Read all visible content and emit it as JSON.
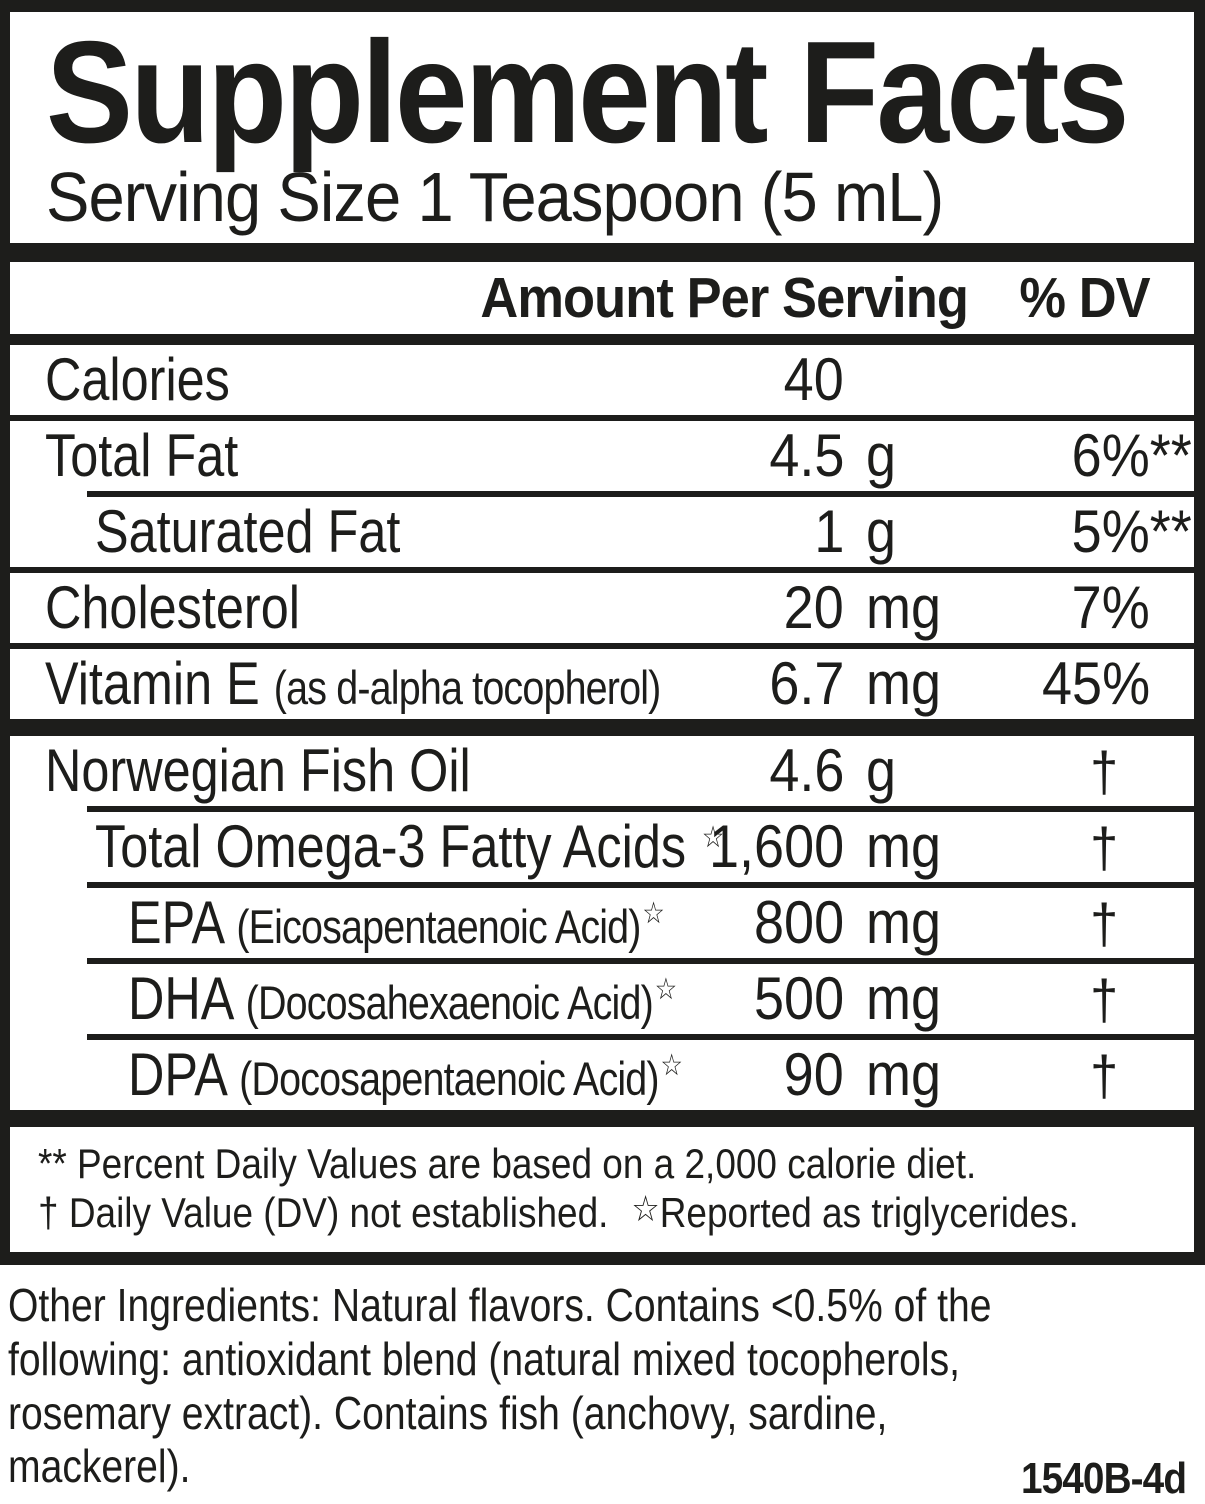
{
  "panel": {
    "title": "Supplement Facts",
    "serving_size": "Serving Size 1 Teaspoon (5 mL)",
    "columns": {
      "amount": "Amount Per Serving",
      "dv": "% DV"
    },
    "rows": [
      {
        "label": "Calories",
        "amount": "40",
        "unit": "",
        "dv": "",
        "indent": 0,
        "sep": "full"
      },
      {
        "label": "Total Fat",
        "amount": "4.5",
        "unit": "g",
        "dv": "6%",
        "dv_suffix": "**",
        "indent": 0,
        "sep": "indent"
      },
      {
        "label": "Saturated Fat",
        "amount": "1",
        "unit": "g",
        "dv": "5%",
        "dv_suffix": "**",
        "indent": 1,
        "sep": "full"
      },
      {
        "label": "Cholesterol",
        "amount": "20",
        "unit": "mg",
        "dv": "7%",
        "indent": 0,
        "sep": "full"
      },
      {
        "label": "Vitamin E",
        "note": "(as d-alpha tocopherol)",
        "amount": "6.7",
        "unit": "mg",
        "dv": "45%",
        "indent": 0,
        "sep": "bar"
      },
      {
        "label": "Norwegian Fish Oil",
        "amount": "4.6",
        "unit": "g",
        "dv": "†",
        "indent": 0,
        "sep": "indent"
      },
      {
        "label": "Total Omega-3 Fatty Acids",
        "star": "☆",
        "amount": "1,600",
        "unit": "mg",
        "dv": "†",
        "indent": 1,
        "sep": "indent"
      },
      {
        "label": "EPA",
        "note": "(Eicosapentaenoic Acid)",
        "star": "☆",
        "amount": "800",
        "unit": "mg",
        "dv": "†",
        "indent": 2,
        "sep": "indent"
      },
      {
        "label": "DHA",
        "note": "(Docosahexaenoic Acid)",
        "star": "☆",
        "amount": "500",
        "unit": "mg",
        "dv": "†",
        "indent": 2,
        "sep": "indent"
      },
      {
        "label": "DPA",
        "note": "(Docosapentaenoic Acid)",
        "star": "☆",
        "amount": "90",
        "unit": "mg",
        "dv": "†",
        "indent": 2,
        "sep": "bar"
      }
    ],
    "footnotes": {
      "line1": "** Percent Daily Values are based on a 2,000 calorie diet.",
      "line2_prefix": "† Daily Value (DV) not established.",
      "line2_star": "☆",
      "line2_suffix": "Reported as triglycerides."
    }
  },
  "other_ingredients": {
    "lines": [
      "Other Ingredients: Natural flavors. Contains <0.5% of the",
      "following: antioxidant blend (natural mixed tocopherols,",
      "rosemary extract). Contains fish (anchovy, sardine,",
      "mackerel)."
    ]
  },
  "footer": {
    "code": "1540B-4d"
  },
  "colors": {
    "ink": "#1d1d1b",
    "background": "#ffffff"
  }
}
